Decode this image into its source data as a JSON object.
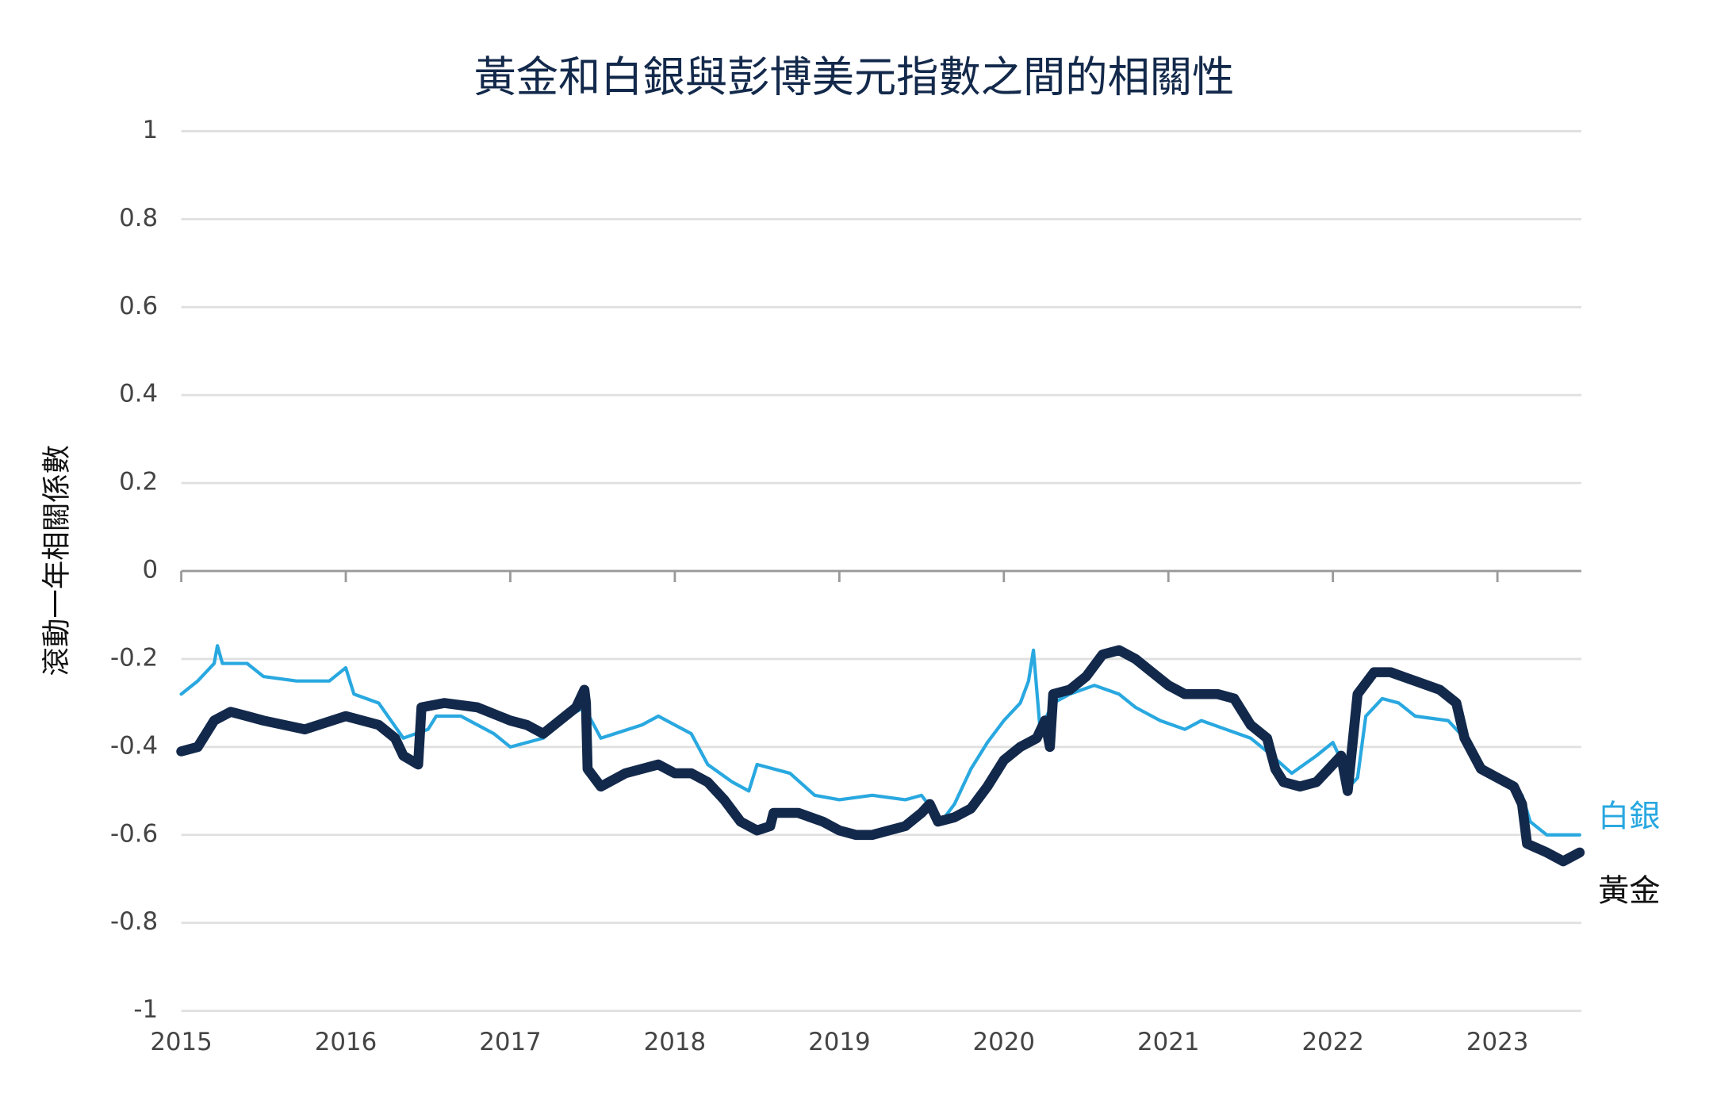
{
  "chart_data": {
    "type": "line",
    "title": "黃金和白銀與彭博美元指數之間的相關性",
    "y_label": "滾動一年相關係數",
    "xlim": [
      2015,
      2023.51
    ],
    "xticks": [
      2015,
      2016,
      2017,
      2018,
      2019,
      2020,
      2021,
      2022,
      2023
    ],
    "ylim": [
      -1,
      1
    ],
    "yticks": [
      -1,
      -0.8,
      -0.6,
      -0.4,
      -0.2,
      0,
      0.2,
      0.4,
      0.6,
      0.8,
      1
    ],
    "grid": true,
    "series": [
      {
        "name": "白銀",
        "color": "#29a8e0",
        "x": [
          2015.0,
          2015.1,
          2015.2,
          2015.22,
          2015.25,
          2015.4,
          2015.5,
          2015.7,
          2015.9,
          2016.0,
          2016.05,
          2016.2,
          2016.35,
          2016.5,
          2016.55,
          2016.7,
          2016.9,
          2017.0,
          2017.2,
          2017.35,
          2017.45,
          2017.55,
          2017.8,
          2017.9,
          2018.0,
          2018.1,
          2018.2,
          2018.35,
          2018.45,
          2018.5,
          2018.7,
          2018.85,
          2019.0,
          2019.2,
          2019.4,
          2019.5,
          2019.62,
          2019.7,
          2019.8,
          2019.9,
          2020.0,
          2020.1,
          2020.15,
          2020.18,
          2020.22,
          2020.3,
          2020.4,
          2020.55,
          2020.7,
          2020.8,
          2020.95,
          2021.1,
          2021.2,
          2021.35,
          2021.5,
          2021.6,
          2021.75,
          2021.9,
          2022.0,
          2022.05,
          2022.1,
          2022.15,
          2022.2,
          2022.3,
          2022.4,
          2022.5,
          2022.7,
          2022.8,
          2022.9,
          2023.0,
          2023.15,
          2023.2,
          2023.3,
          2023.5
        ],
        "values": [
          -0.28,
          -0.25,
          -0.21,
          -0.17,
          -0.21,
          -0.21,
          -0.24,
          -0.25,
          -0.25,
          -0.22,
          -0.28,
          -0.3,
          -0.38,
          -0.36,
          -0.33,
          -0.33,
          -0.37,
          -0.4,
          -0.38,
          -0.33,
          -0.31,
          -0.38,
          -0.35,
          -0.33,
          -0.35,
          -0.37,
          -0.44,
          -0.48,
          -0.5,
          -0.44,
          -0.46,
          -0.51,
          -0.52,
          -0.51,
          -0.52,
          -0.51,
          -0.57,
          -0.53,
          -0.45,
          -0.39,
          -0.34,
          -0.3,
          -0.25,
          -0.18,
          -0.36,
          -0.3,
          -0.28,
          -0.26,
          -0.28,
          -0.31,
          -0.34,
          -0.36,
          -0.34,
          -0.36,
          -0.38,
          -0.41,
          -0.46,
          -0.42,
          -0.39,
          -0.43,
          -0.49,
          -0.47,
          -0.33,
          -0.29,
          -0.3,
          -0.33,
          -0.34,
          -0.38,
          -0.45,
          -0.47,
          -0.51,
          -0.57,
          -0.6,
          -0.6
        ]
      },
      {
        "name": "黃金",
        "color": "#13294b",
        "x": [
          2015.0,
          2015.1,
          2015.2,
          2015.3,
          2015.4,
          2015.5,
          2015.75,
          2016.0,
          2016.2,
          2016.3,
          2016.35,
          2016.44,
          2016.46,
          2016.6,
          2016.8,
          2017.0,
          2017.1,
          2017.2,
          2017.3,
          2017.4,
          2017.45,
          2017.46,
          2017.47,
          2017.55,
          2017.7,
          2017.9,
          2018.0,
          2018.1,
          2018.2,
          2018.3,
          2018.4,
          2018.5,
          2018.58,
          2018.6,
          2018.75,
          2018.9,
          2019.0,
          2019.1,
          2019.2,
          2019.3,
          2019.4,
          2019.5,
          2019.55,
          2019.6,
          2019.7,
          2019.8,
          2019.9,
          2020.0,
          2020.1,
          2020.2,
          2020.25,
          2020.28,
          2020.3,
          2020.4,
          2020.5,
          2020.6,
          2020.7,
          2020.8,
          2020.9,
          2021.0,
          2021.1,
          2021.2,
          2021.3,
          2021.4,
          2021.5,
          2021.6,
          2021.65,
          2021.7,
          2021.8,
          2021.9,
          2022.0,
          2022.05,
          2022.09,
          2022.15,
          2022.25,
          2022.35,
          2022.5,
          2022.65,
          2022.75,
          2022.8,
          2022.9,
          2023.0,
          2023.1,
          2023.15,
          2023.18,
          2023.3,
          2023.4,
          2023.5
        ],
        "values": [
          -0.41,
          -0.4,
          -0.34,
          -0.32,
          -0.33,
          -0.34,
          -0.36,
          -0.33,
          -0.35,
          -0.38,
          -0.42,
          -0.44,
          -0.31,
          -0.3,
          -0.31,
          -0.34,
          -0.35,
          -0.37,
          -0.34,
          -0.31,
          -0.27,
          -0.3,
          -0.45,
          -0.49,
          -0.46,
          -0.44,
          -0.46,
          -0.46,
          -0.48,
          -0.52,
          -0.57,
          -0.59,
          -0.58,
          -0.55,
          -0.55,
          -0.57,
          -0.59,
          -0.6,
          -0.6,
          -0.59,
          -0.58,
          -0.55,
          -0.53,
          -0.57,
          -0.56,
          -0.54,
          -0.49,
          -0.43,
          -0.4,
          -0.38,
          -0.34,
          -0.4,
          -0.28,
          -0.27,
          -0.24,
          -0.19,
          -0.18,
          -0.2,
          -0.23,
          -0.26,
          -0.28,
          -0.28,
          -0.28,
          -0.29,
          -0.35,
          -0.38,
          -0.45,
          -0.48,
          -0.49,
          -0.48,
          -0.44,
          -0.42,
          -0.5,
          -0.28,
          -0.23,
          -0.23,
          -0.25,
          -0.27,
          -0.3,
          -0.38,
          -0.45,
          -0.47,
          -0.49,
          -0.53,
          -0.62,
          -0.64,
          -0.66,
          -0.64
        ]
      }
    ]
  }
}
